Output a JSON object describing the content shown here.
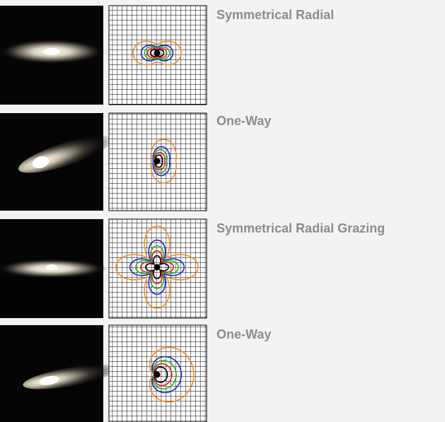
{
  "items": [
    {
      "label": "Symmetrical Radial"
    },
    {
      "label": "One-Way"
    },
    {
      "label": "Symmetrical Radial Grazing"
    },
    {
      "label": "One-Way"
    }
  ]
}
